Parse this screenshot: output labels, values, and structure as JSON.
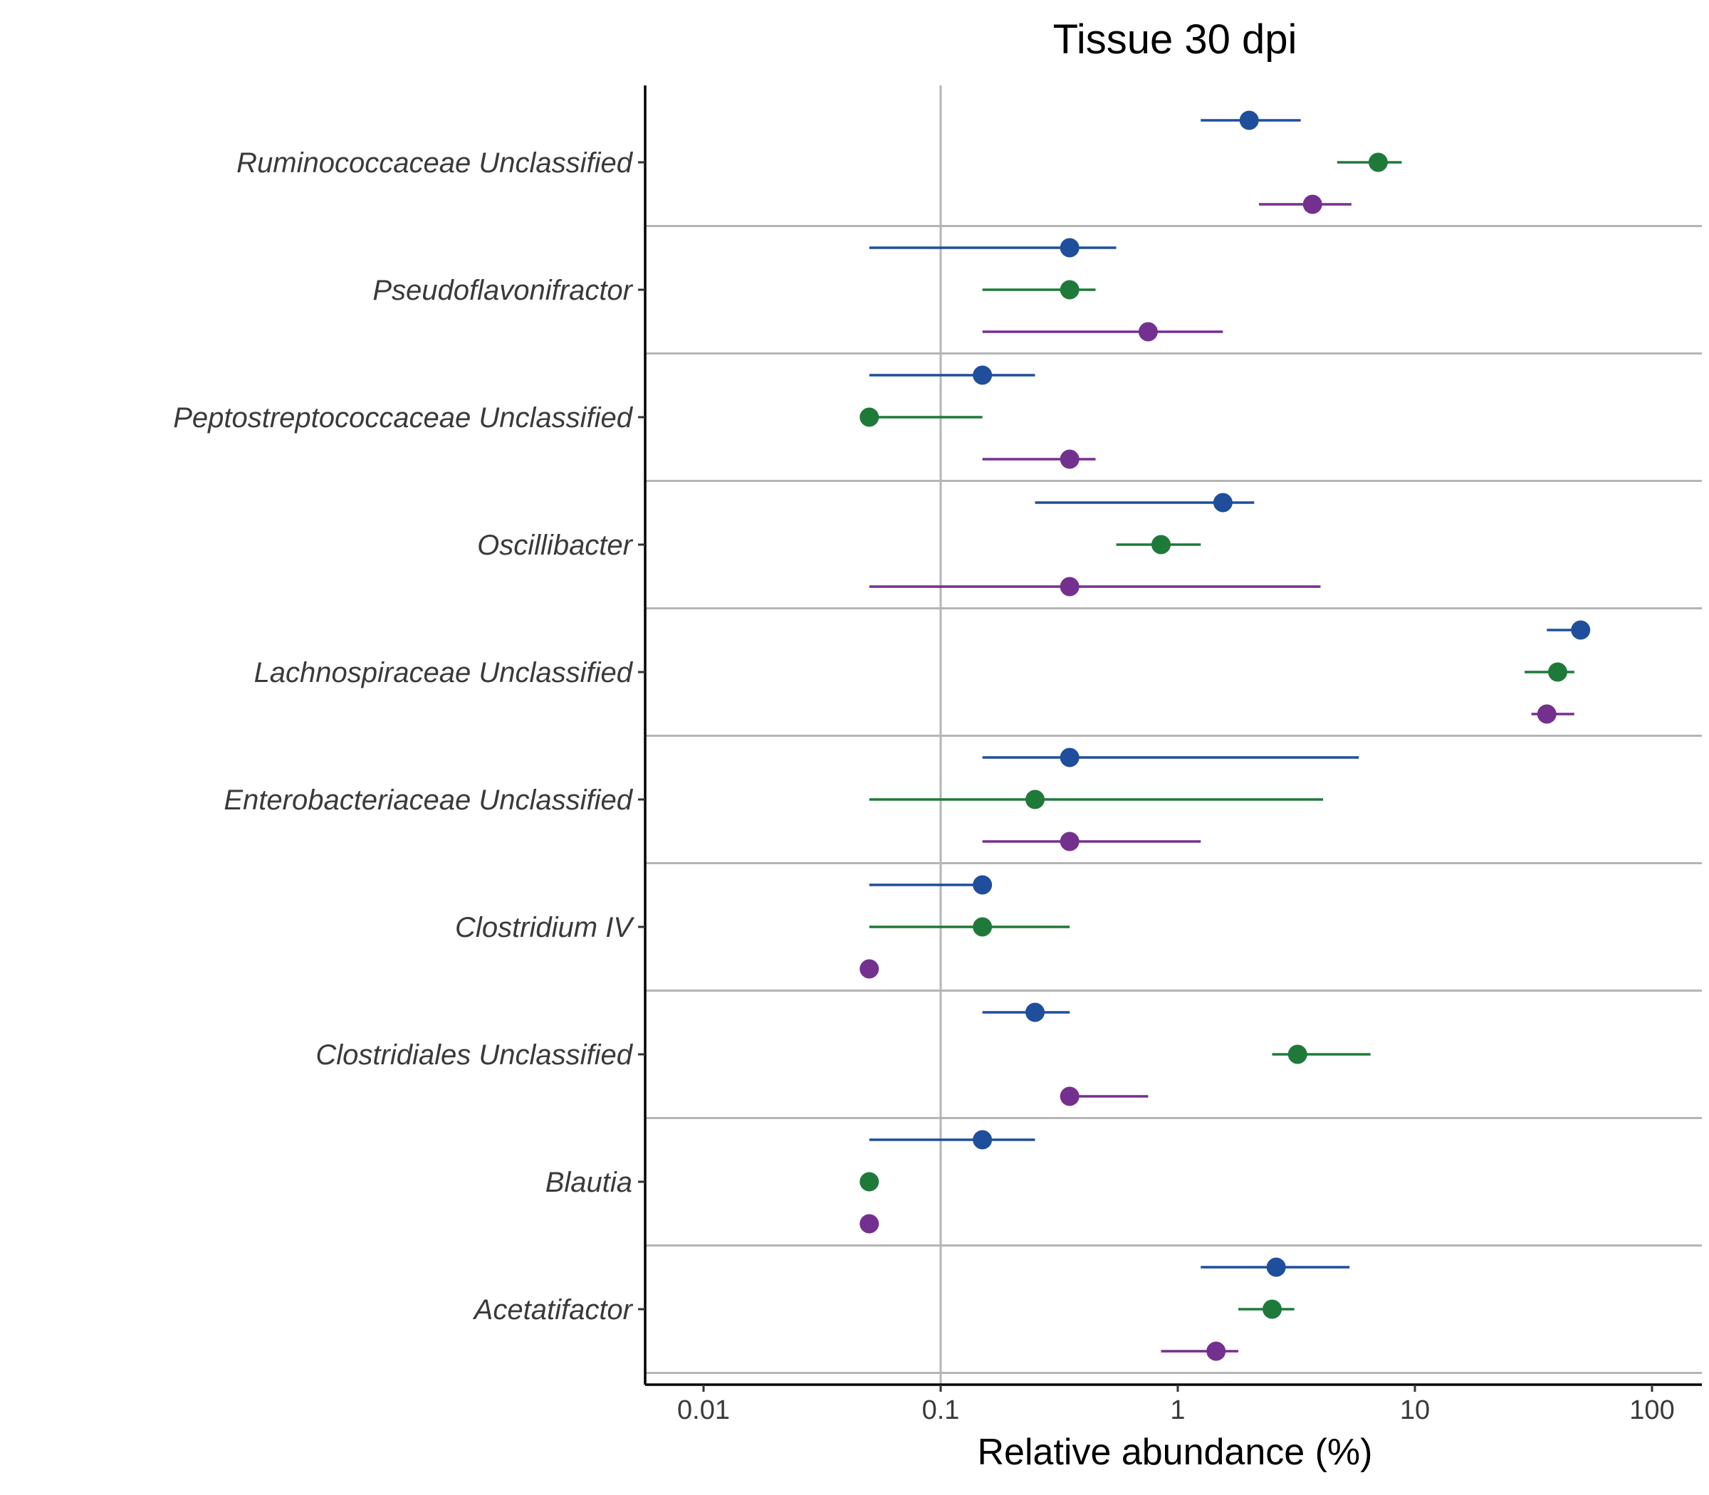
{
  "chart_data": {
    "type": "scatter",
    "title": "Tissue 30 dpi",
    "xlabel": "Relative abundance (%)",
    "ylabel": "",
    "x_scale": "log",
    "xlim": [
      0.006,
      160
    ],
    "x_ticks": [
      0.01,
      0.1,
      1,
      10,
      100
    ],
    "x_tick_labels": [
      "0.01",
      "0.1",
      "1",
      "10",
      "100"
    ],
    "reference_line": 0.1,
    "categories": [
      "Ruminococcaceae Unclassified",
      "Pseudoflavonifractor",
      "Peptostreptococcaceae Unclassified",
      "Oscillibacter",
      "Lachnospiraceae Unclassified",
      "Enterobacteriaceae Unclassified",
      "Clostridium IV",
      "Clostridiales Unclassified",
      "Blautia",
      "Acetatifactor"
    ],
    "series": [
      {
        "color": "#1f4e9c",
        "points": [
          {
            "x": 2.0,
            "lo": 1.25,
            "hi": 3.3
          },
          {
            "x": 0.35,
            "lo": 0.05,
            "hi": 0.55
          },
          {
            "x": 0.15,
            "lo": 0.05,
            "hi": 0.25
          },
          {
            "x": 1.55,
            "lo": 0.25,
            "hi": 2.1
          },
          {
            "x": 50,
            "lo": 36,
            "hi": 50
          },
          {
            "x": 0.35,
            "lo": 0.15,
            "hi": 5.8
          },
          {
            "x": 0.15,
            "lo": 0.05,
            "hi": 0.15
          },
          {
            "x": 0.25,
            "lo": 0.15,
            "hi": 0.35
          },
          {
            "x": 0.15,
            "lo": 0.05,
            "hi": 0.25
          },
          {
            "x": 2.6,
            "lo": 1.25,
            "hi": 5.3
          }
        ]
      },
      {
        "color": "#1f7a3a",
        "points": [
          {
            "x": 7.0,
            "lo": 4.7,
            "hi": 8.8
          },
          {
            "x": 0.35,
            "lo": 0.15,
            "hi": 0.45
          },
          {
            "x": 0.05,
            "lo": 0.05,
            "hi": 0.15
          },
          {
            "x": 0.85,
            "lo": 0.55,
            "hi": 1.25
          },
          {
            "x": 40,
            "lo": 29,
            "hi": 47
          },
          {
            "x": 0.25,
            "lo": 0.05,
            "hi": 4.1
          },
          {
            "x": 0.15,
            "lo": 0.05,
            "hi": 0.35
          },
          {
            "x": 3.2,
            "lo": 2.5,
            "hi": 6.5
          },
          {
            "x": 0.05,
            "lo": 0.05,
            "hi": 0.05
          },
          {
            "x": 2.5,
            "lo": 1.8,
            "hi": 3.1
          }
        ]
      },
      {
        "color": "#74308f",
        "points": [
          {
            "x": 3.7,
            "lo": 2.2,
            "hi": 5.4
          },
          {
            "x": 0.75,
            "lo": 0.15,
            "hi": 1.55
          },
          {
            "x": 0.35,
            "lo": 0.15,
            "hi": 0.45
          },
          {
            "x": 0.35,
            "lo": 0.05,
            "hi": 4.0
          },
          {
            "x": 36,
            "lo": 31,
            "hi": 47
          },
          {
            "x": 0.35,
            "lo": 0.15,
            "hi": 1.25
          },
          {
            "x": 0.05,
            "lo": 0.05,
            "hi": 0.05
          },
          {
            "x": 0.35,
            "lo": 0.35,
            "hi": 0.75
          },
          {
            "x": 0.05,
            "lo": 0.05,
            "hi": 0.05
          },
          {
            "x": 1.45,
            "lo": 0.85,
            "hi": 1.8
          }
        ]
      }
    ]
  }
}
